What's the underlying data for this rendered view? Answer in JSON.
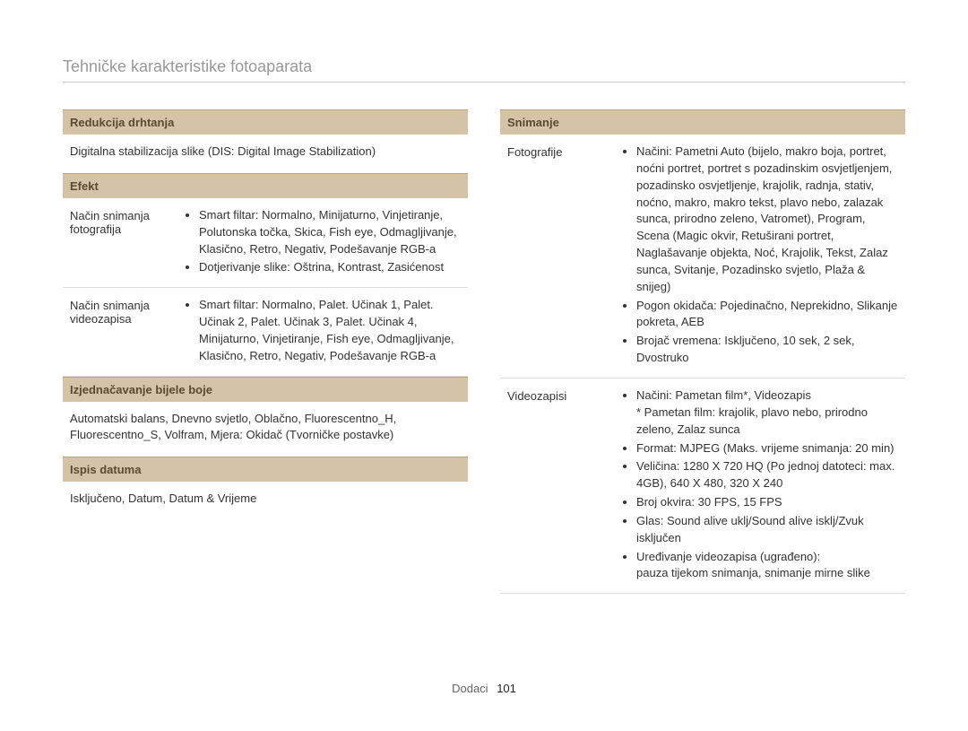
{
  "title": "Tehničke karakteristike fotoaparata",
  "footer": {
    "label": "Dodaci",
    "page": "101"
  },
  "left": {
    "sec1": {
      "header": "Redukcija drhtanja",
      "body": "Digitalna stabilizacija slike (DIS: Digital Image Stabilization)"
    },
    "sec2": {
      "header": "Efekt",
      "rows": [
        {
          "label": "Način snimanja fotografija",
          "bullets": [
            "Smart filtar: Normalno, Minijaturno, Vinjetiranje, Polutonska točka, Skica, Fish eye, Odmagljivanje, Klasično, Retro, Negativ, Podešavanje RGB-a",
            "Dotjerivanje slike: Oštrina, Kontrast, Zasićenost"
          ]
        },
        {
          "label": "Način snimanja videozapisa",
          "bullets": [
            "Smart filtar: Normalno, Palet. Učinak 1, Palet. Učinak 2, Palet. Učinak 3, Palet. Učinak 4, Minijaturno, Vinjetiranje, Fish eye, Odmagljivanje, Klasično, Retro, Negativ, Podešavanje RGB-a"
          ]
        }
      ]
    },
    "sec3": {
      "header": "Izjednačavanje bijele boje",
      "body": "Automatski balans, Dnevno svjetlo, Oblačno, Fluorescentno_H, Fluorescentno_S, Volfram, Mjera: Okidač (Tvorničke postavke)"
    },
    "sec4": {
      "header": "Ispis datuma",
      "body": "Isključeno, Datum, Datum & Vrijeme"
    }
  },
  "right": {
    "sec1": {
      "header": "Snimanje",
      "rows": [
        {
          "label": "Fotografije",
          "bullets": [
            "Načini: Pametni Auto (bijelo, makro boja, portret, noćni portret, portret s pozadinskim osvjetljenjem, pozadinsko osvjetljenje, krajolik, radnja, stativ, noćno, makro, makro tekst, plavo nebo, zalazak sunca, prirodno zeleno, Vatromet), Program, Scena (Magic okvir, Retuširani portret, Naglašavanje objekta, Noć, Krajolik, Tekst, Zalaz sunca, Svitanje, Pozadinsko svjetlo, Plaža & snijeg)",
            "Pogon okidača: Pojedinačno, Neprekidno, Slikanje pokreta, AEB",
            "Brojač vremena: Isključeno, 10 sek, 2 sek, Dvostruko"
          ]
        },
        {
          "label": "Videozapisi",
          "bullets": [
            "Načini: Pametan film*, Videozapis\n* Pametan film: krajolik, plavo nebo, prirodno zeleno, Zalaz sunca",
            "Format: MJPEG (Maks. vrijeme snimanja: 20 min)",
            "Veličina: 1280 X 720 HQ (Po jednoj datoteci: max.\n4GB), 640 X 480, 320 X 240",
            "Broj okvira: 30 FPS, 15 FPS",
            "Glas: Sound alive uklj/Sound alive isklj/Zvuk isključen",
            "Uređivanje videozapisa (ugrađeno):\npauza tijekom snimanja, snimanje mirne slike"
          ]
        }
      ]
    }
  },
  "style": {
    "header_bg": "#d4c3a7",
    "header_color": "#5a4a2e",
    "title_color": "#999999",
    "border_color": "#dddddd",
    "body_color": "#333333",
    "font_size_title": 18,
    "font_size_body": 13
  }
}
